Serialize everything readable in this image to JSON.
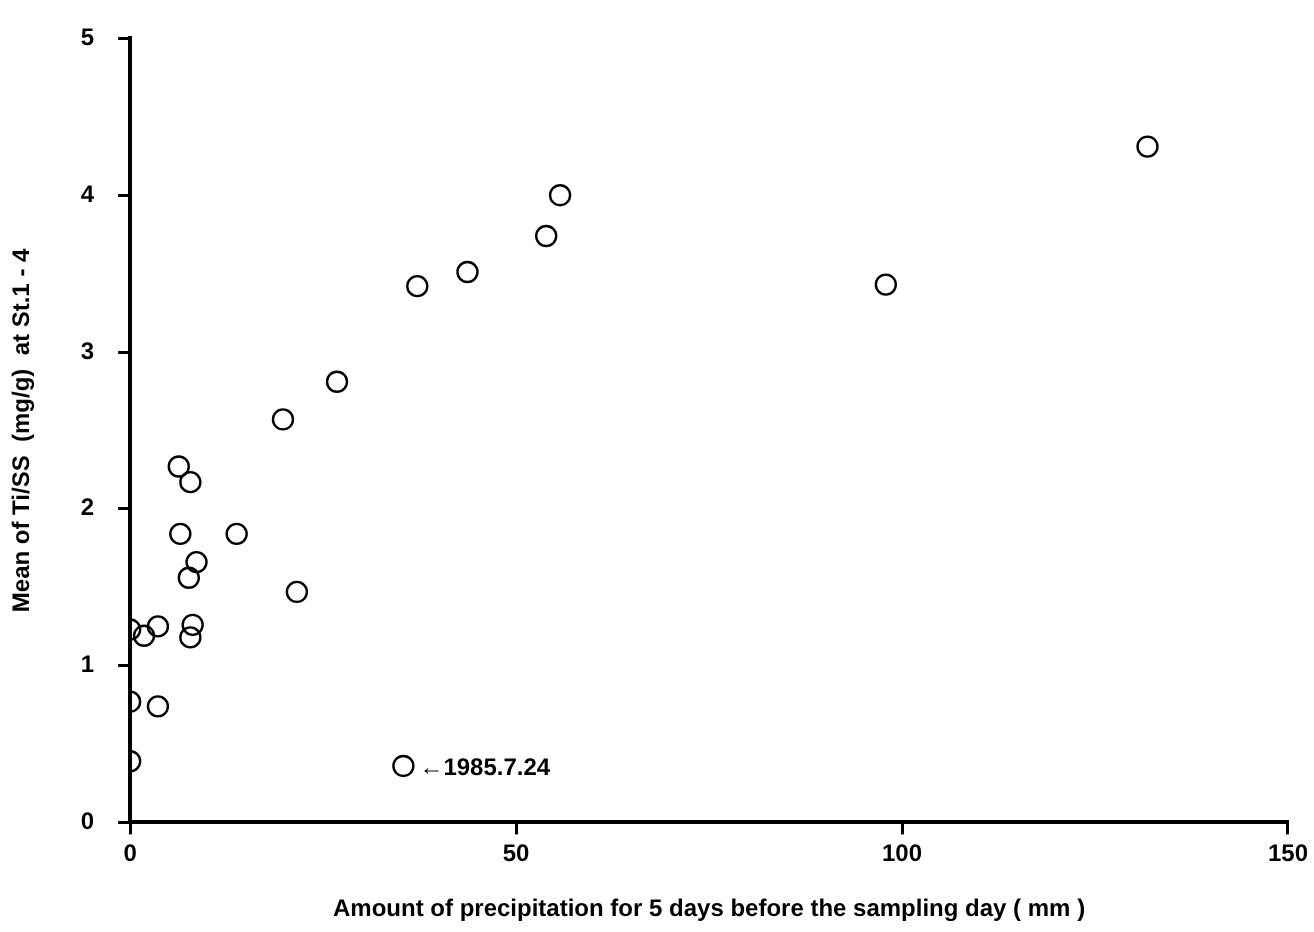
{
  "chart_data": {
    "type": "scatter",
    "xlabel": "Amount of precipitation for 5 days before the sampling day ( mm )",
    "ylabel": "Mean of Ti/SS  (mg/g)  at St.1 - 4",
    "marker": "circle",
    "x": [
      0,
      0,
      0,
      1.8,
      3.6,
      3.6,
      6.3,
      7.8,
      6.5,
      13.8,
      8.6,
      7.6,
      21.6,
      8.1,
      7.8,
      35.4,
      19.8,
      26.8,
      37.2,
      43.7,
      53.9,
      55.7,
      97.9,
      131.8
    ],
    "series": [
      {
        "color": "#000000",
        "values": [
          0.39,
          0.77,
          1.23,
          1.19,
          1.25,
          0.74,
          2.27,
          2.17,
          1.84,
          1.84,
          1.66,
          1.56,
          1.47,
          1.26,
          1.18,
          0.36,
          2.57,
          2.81,
          3.42,
          3.51,
          3.74,
          4.0,
          3.43,
          4.31
        ]
      }
    ],
    "xlim": [
      0,
      150
    ],
    "xticks": [
      0,
      50,
      100,
      150
    ],
    "ylim": [
      0,
      5
    ],
    "yticks": [
      0,
      1,
      2,
      3,
      4,
      5
    ],
    "legend": false,
    "annotations": [
      {
        "text": "←1985.7.24",
        "x": 35.4,
        "y": 0.36
      }
    ]
  }
}
